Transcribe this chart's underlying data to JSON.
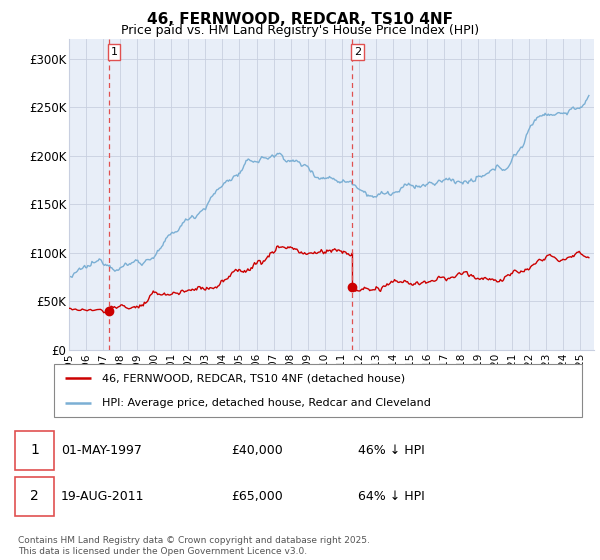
{
  "title_line1": "46, FERNWOOD, REDCAR, TS10 4NF",
  "title_line2": "Price paid vs. HM Land Registry's House Price Index (HPI)",
  "legend_label_red": "46, FERNWOOD, REDCAR, TS10 4NF (detached house)",
  "legend_label_blue": "HPI: Average price, detached house, Redcar and Cleveland",
  "footnote": "Contains HM Land Registry data © Crown copyright and database right 2025.\nThis data is licensed under the Open Government Licence v3.0.",
  "annotation1_date": "01-MAY-1997",
  "annotation1_price": "£40,000",
  "annotation1_hpi": "46% ↓ HPI",
  "annotation2_date": "19-AUG-2011",
  "annotation2_price": "£65,000",
  "annotation2_hpi": "64% ↓ HPI",
  "marker1_x": 1997.33,
  "marker1_y_red": 40000,
  "marker2_x": 2011.63,
  "marker2_y_red": 65000,
  "xlim_left": 1995.0,
  "xlim_right": 2025.8,
  "ylim_bottom": 0,
  "ylim_top": 320000,
  "yticks": [
    0,
    50000,
    100000,
    150000,
    200000,
    250000,
    300000
  ],
  "ytick_labels": [
    "£0",
    "£50K",
    "£100K",
    "£150K",
    "£200K",
    "£250K",
    "£300K"
  ],
  "xticks": [
    1995,
    1996,
    1997,
    1998,
    1999,
    2000,
    2001,
    2002,
    2003,
    2004,
    2005,
    2006,
    2007,
    2008,
    2009,
    2010,
    2011,
    2012,
    2013,
    2014,
    2015,
    2016,
    2017,
    2018,
    2019,
    2020,
    2021,
    2022,
    2023,
    2024,
    2025
  ],
  "red_color": "#cc0000",
  "blue_color": "#7bafd4",
  "vline_color": "#e05050",
  "bg_color": "#e8eef8",
  "grid_color": "#c8cfe0",
  "title_fontsize": 11,
  "subtitle_fontsize": 9
}
